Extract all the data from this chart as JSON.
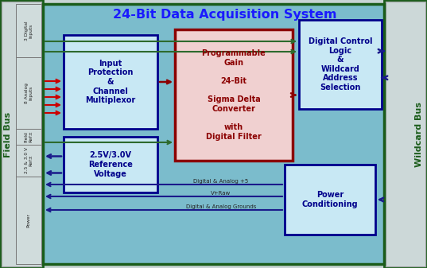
{
  "title": "24-Bit Data Acquisition System",
  "title_color": "#1a1aff",
  "bg_outer": "#c8d4d4",
  "bg_main": "#7bbccc",
  "field_bus_label": "Field Bus",
  "wildcard_bus_label": "Wildcard Bus",
  "field_bus_sections": [
    "3 Digital\nInputs",
    "8 Analog\nInputs",
    "Field\nRef±",
    "2.5 & 3.0 V\nRef±",
    "Power"
  ],
  "block_input_protection": "Input\nProtection\n&\nChannel\nMultiplexor",
  "block_sigma_delta": "Programmable\nGain\n\n24-Bit\n\nSigma Delta\nConverter\n\nwith\nDigital Filter",
  "block_digital_control": "Digital Control\nLogic\n&\nWildcard\nAddress\nSelection",
  "block_reference": "2.5V/3.0V\nReference\nVoltage",
  "block_power": "Power\nConditioning",
  "arrow_color_dark_red": "#8b0000",
  "arrow_color_dark_green": "#2d6a2d",
  "arrow_color_dark_blue": "#1a1a8b",
  "arrow_color_red": "#cc0000",
  "block_text_color": "#00008b",
  "sigma_delta_text_color": "#8b0000",
  "power_line1": "Digital & Analog +5",
  "power_line2": "V+Raw",
  "power_line3": "Digital & Analog Grounds",
  "main_border_color": "#1a5c1a",
  "box_border_color": "#00008b",
  "sigma_border_color": "#8b0000",
  "fb_grad_left": "#b8c8c8",
  "fb_grad_right": "#d8e4e4",
  "wc_grad": "#c8d8d8"
}
